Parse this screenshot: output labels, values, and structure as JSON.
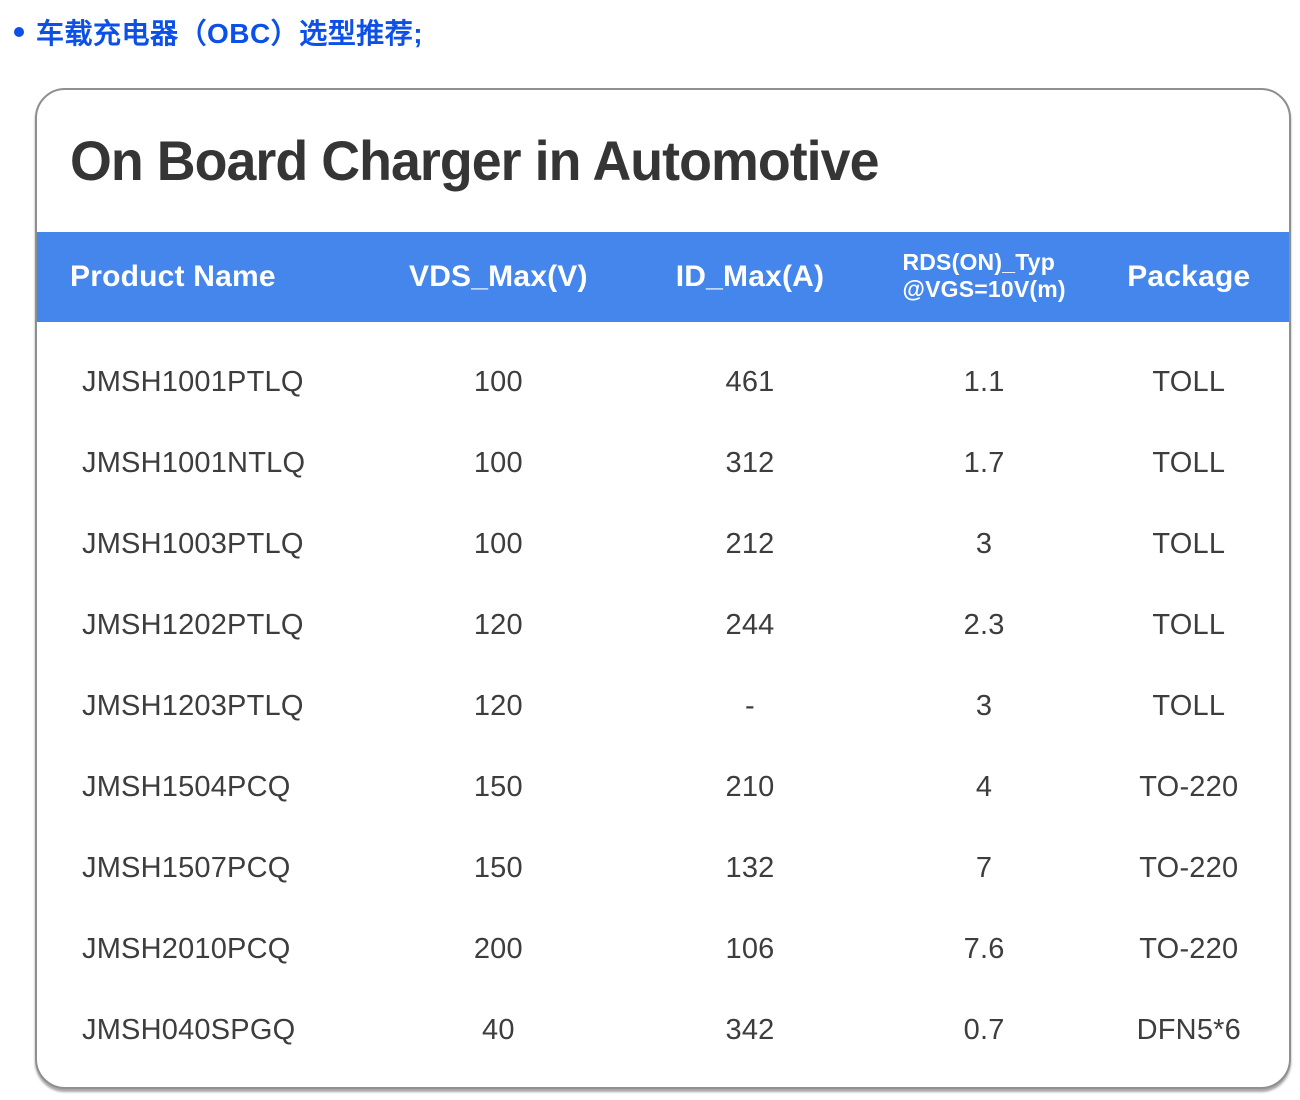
{
  "page": {
    "heading": "车载充电器（OBC）选型推荐;"
  },
  "card": {
    "title": "On Board Charger in Automotive"
  },
  "colors": {
    "heading_blue": "#0c50e8",
    "header_bg": "#4486eb",
    "cell_text": "#3d3d3d",
    "card_border": "#8f8f8f"
  },
  "table": {
    "columns": [
      {
        "label": "Product Name"
      },
      {
        "label": "VDS_Max(V)"
      },
      {
        "label": "ID_Max(A)"
      },
      {
        "label": "RDS(ON)_Typ",
        "sublabel": "@VGS=10V(m)"
      },
      {
        "label": "Package"
      }
    ],
    "rows": [
      [
        "JMSH1001PTLQ",
        "100",
        "461",
        "1.1",
        "TOLL"
      ],
      [
        "JMSH1001NTLQ",
        "100",
        "312",
        "1.7",
        "TOLL"
      ],
      [
        "JMSH1003PTLQ",
        "100",
        "212",
        "3",
        "TOLL"
      ],
      [
        "JMSH1202PTLQ",
        "120",
        "244",
        "2.3",
        "TOLL"
      ],
      [
        "JMSH1203PTLQ",
        "120",
        "-",
        "3",
        "TOLL"
      ],
      [
        "JMSH1504PCQ",
        "150",
        "210",
        "4",
        "TO-220"
      ],
      [
        "JMSH1507PCQ",
        "150",
        "132",
        "7",
        "TO-220"
      ],
      [
        "JMSH2010PCQ",
        "200",
        "106",
        "7.6",
        "TO-220"
      ],
      [
        "JMSH040SPGQ",
        "40",
        "342",
        "0.7",
        "DFN5*6"
      ]
    ]
  }
}
